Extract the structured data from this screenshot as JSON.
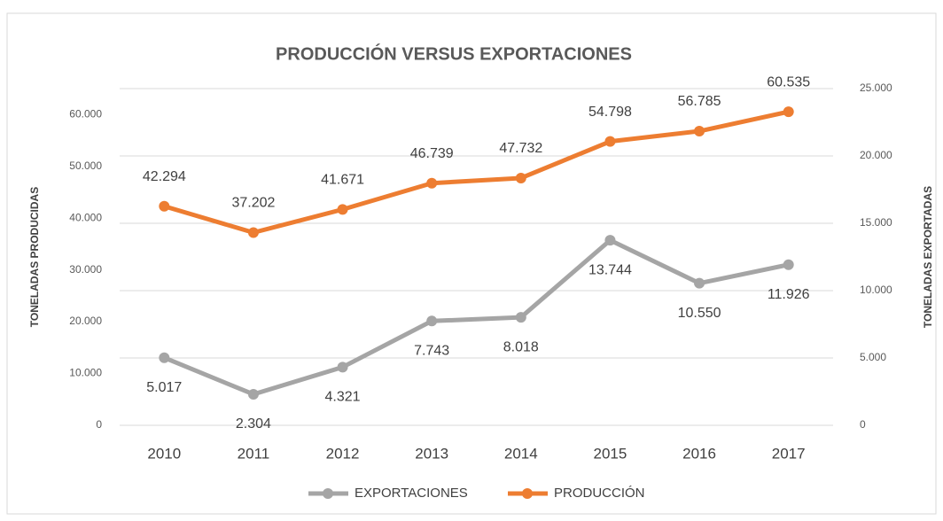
{
  "chart_data": {
    "type": "line",
    "title": "PRODUCCIÓN VERSUS EXPORTACIONES",
    "y_label": "TONELADAS PRODUCIDAS",
    "y2_label": "TONELADAS EXPORTADAS",
    "categories": [
      "2010",
      "2011",
      "2012",
      "2013",
      "2014",
      "2015",
      "2016",
      "2017"
    ],
    "ylim": [
      0,
      65000
    ],
    "yticks": [
      0,
      {
        "value": 10000,
        "label": "10.000"
      },
      {
        "value": 20000,
        "label": "20.000"
      },
      {
        "value": 30000,
        "label": "30.000"
      },
      {
        "value": 40000,
        "label": "40.000"
      },
      {
        "value": 50000,
        "label": "50.000"
      },
      {
        "value": 60000,
        "label": "60.000"
      }
    ],
    "y2lim": [
      0,
      25000
    ],
    "y2ticks": [
      0,
      {
        "value": 5000,
        "label": "5.000"
      },
      {
        "value": 10000,
        "label": "10.000"
      },
      {
        "value": 15000,
        "label": "15.000"
      },
      {
        "value": 20000,
        "label": "20.000"
      },
      {
        "value": 25000,
        "label": "25.000"
      }
    ],
    "grid": true,
    "legend": "bottom",
    "series": [
      {
        "name": "EXPORTACIONES",
        "color": "#a5a5a5",
        "axis": "y2",
        "values": [
          5017,
          2304,
          4321,
          7743,
          8018,
          13744,
          10550,
          11926
        ],
        "value_labels": [
          "5.017",
          "2.304",
          "4.321",
          "7.743",
          "8.018",
          "13.744",
          "10.550",
          "11.926"
        ]
      },
      {
        "name": "PRODUCCIÓN",
        "color": "#ed7d31",
        "values": [
          42294,
          37202,
          41671,
          46739,
          47732,
          54798,
          56785,
          60535
        ],
        "value_labels": [
          "42.294",
          "37.202",
          "41.671",
          "46.739",
          "47.732",
          "54.798",
          "56.785",
          "60.535"
        ]
      }
    ]
  }
}
